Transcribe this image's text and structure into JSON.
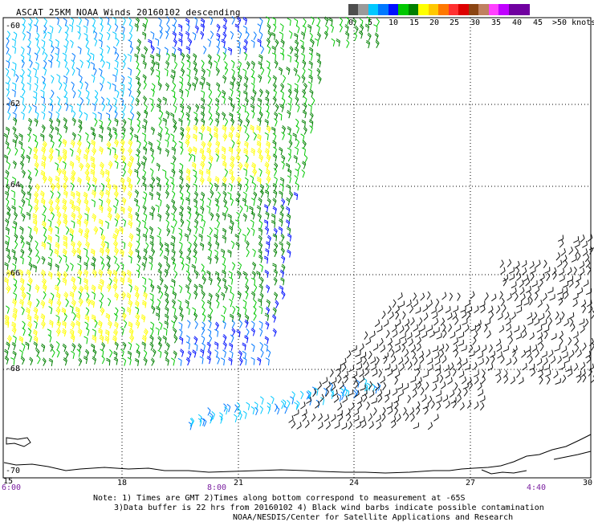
{
  "title": "ASCAT 25KM NOAA Winds 20160102 descending",
  "legend": {
    "colors": [
      "#4d4d4d",
      "#9a9a9a",
      "#00c8ff",
      "#0078ff",
      "#0010ff",
      "#00c800",
      "#008000",
      "#ffff00",
      "#ffc800",
      "#ff7800",
      "#ff3030",
      "#dd0000",
      "#8b4513",
      "#c08060",
      "#ff40ff",
      "#c000ff",
      "#7000a0"
    ],
    "labels": [
      "0",
      "5",
      "10",
      "15",
      "20",
      "25",
      "30",
      "35",
      "40",
      "45",
      ">50 knots"
    ]
  },
  "axes": {
    "lat_labels": [
      "-60",
      "-62",
      "-64",
      "-66",
      "-68",
      "-70"
    ],
    "lon_labels": [
      "15",
      "18",
      "21",
      "24",
      "27",
      "30"
    ],
    "time_labels": [
      "6:00",
      "8:00",
      "4:40"
    ]
  },
  "notes": {
    "line1": "Note: 1) Times are GMT 2)Times along bottom correspond to measurement at -65S",
    "line2": "3)Data buffer is 22 hrs from 20160102 4) Black wind barbs indicate possible contamination",
    "line3": "NOAA/NESDIS/Center for Satellite Applications and Research"
  }
}
